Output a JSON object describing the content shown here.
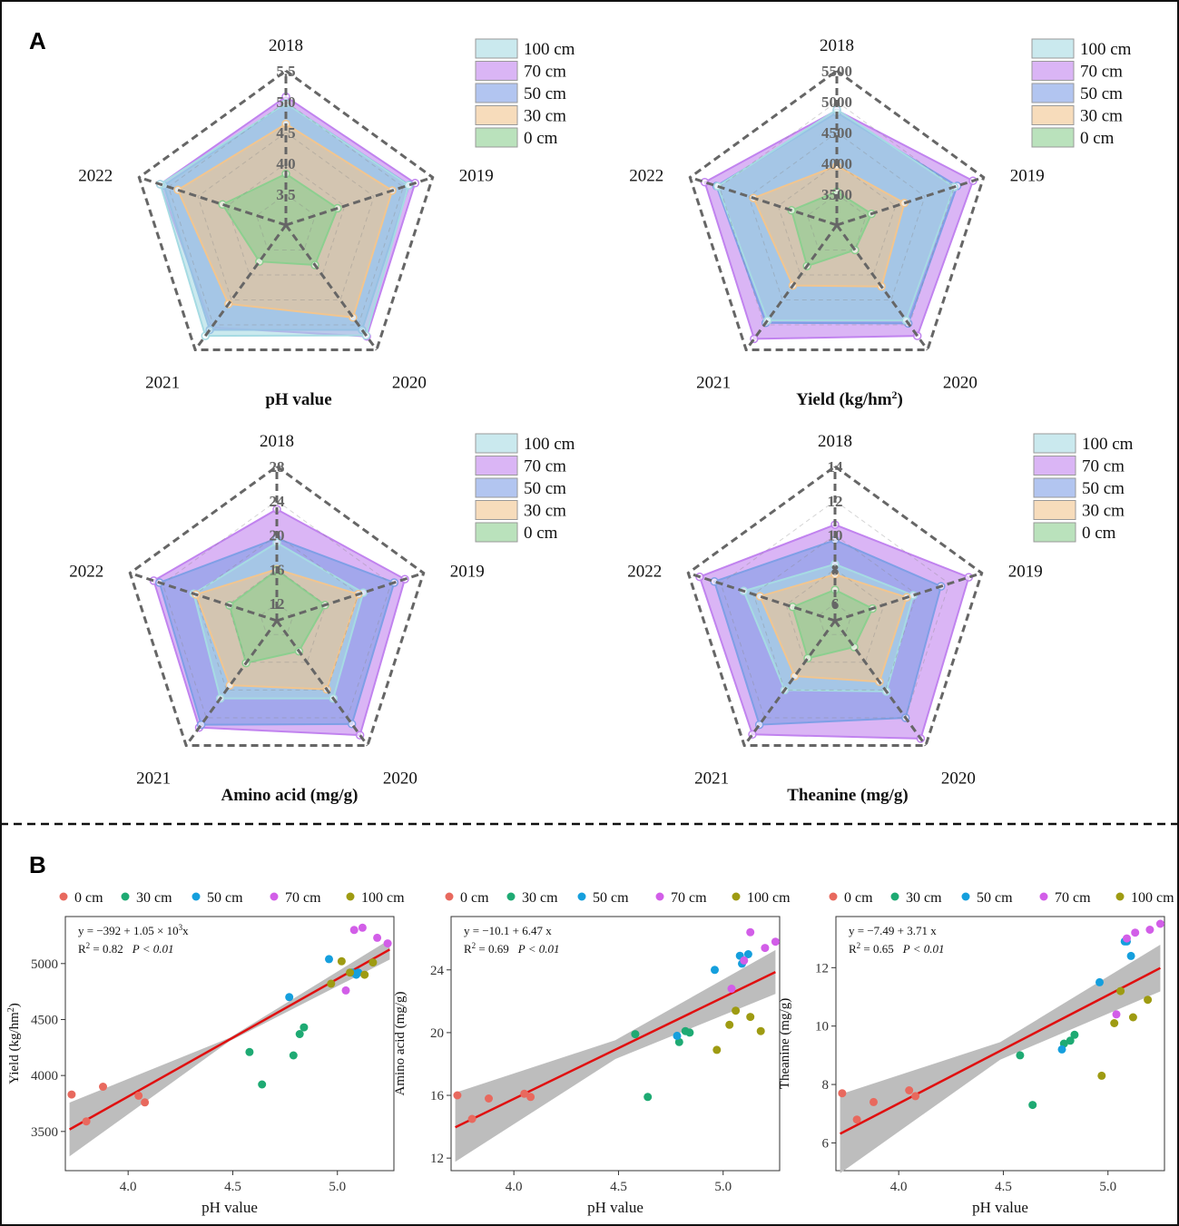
{
  "panels": {
    "a": "A",
    "b": "B"
  },
  "radar_charts": [
    {
      "type": "radar",
      "title": "pH value",
      "axes": [
        "2018",
        "2019",
        "2020",
        "2021",
        "2022"
      ],
      "range": [
        3.0,
        5.5
      ],
      "ticks": [
        3.5,
        4.0,
        4.5,
        5.0,
        5.5
      ],
      "tick_labels": [
        "3.5",
        "4.0",
        "4.5",
        "5.0",
        "5.5"
      ],
      "legend": [
        "100 cm",
        "70 cm",
        "50 cm",
        "30 cm",
        "0 cm"
      ],
      "series": [
        {
          "name": "0 cm",
          "values": [
            3.83,
            3.88,
            3.8,
            3.73,
            4.08
          ]
        },
        {
          "name": "30 cm",
          "values": [
            4.64,
            4.81,
            4.85,
            4.58,
            4.84
          ]
        },
        {
          "name": "50 cm",
          "values": [
            4.97,
            5.1,
            5.1,
            5.1,
            5.08
          ]
        },
        {
          "name": "70 cm",
          "values": [
            5.08,
            5.2,
            5.23,
            5.05,
            5.14
          ]
        },
        {
          "name": "100 cm",
          "values": [
            4.97,
            5.09,
            5.21,
            5.22,
            5.14
          ]
        }
      ]
    },
    {
      "type": "radar",
      "title": "Yield (kg/hm",
      "title_sup": "2",
      "title_end": ")",
      "axes": [
        "2018",
        "2019",
        "2020",
        "2021",
        "2022"
      ],
      "range": [
        3000,
        5500
      ],
      "ticks": [
        3500,
        4000,
        4500,
        5000,
        5500
      ],
      "tick_labels": [
        "3500",
        "4000",
        "4500",
        "5000",
        "5500"
      ],
      "legend": [
        "100 cm",
        "70 cm",
        "50 cm",
        "30 cm",
        "0 cm"
      ],
      "series": [
        {
          "name": "0 cm",
          "values": [
            3540,
            3590,
            3500,
            3820,
            3770
          ]
        },
        {
          "name": "30 cm",
          "values": [
            3960,
            4150,
            4230,
            4210,
            4420
          ]
        },
        {
          "name": "50 cm",
          "values": [
            4820,
            5050,
            4970,
            4960,
            5050
          ]
        },
        {
          "name": "70 cm",
          "values": [
            4860,
            5320,
            5220,
            5280,
            5250
          ]
        },
        {
          "name": "100 cm",
          "values": [
            4870,
            5000,
            4910,
            4910,
            5030
          ]
        }
      ]
    },
    {
      "type": "radar",
      "title": "Amino acid (mg/g)",
      "axes": [
        "2018",
        "2019",
        "2020",
        "2021",
        "2022"
      ],
      "range": [
        10,
        28
      ],
      "ticks": [
        12,
        16,
        20,
        24,
        28
      ],
      "tick_labels": [
        "12",
        "16",
        "20",
        "24",
        "28"
      ],
      "legend": [
        "100 cm",
        "70 cm",
        "50 cm",
        "30 cm",
        "0 cm"
      ],
      "series": [
        {
          "name": "0 cm",
          "values": [
            15.9,
            15.9,
            14.4,
            16.1,
            15.8
          ]
        },
        {
          "name": "30 cm",
          "values": [
            16.0,
            20.0,
            19.9,
            19.3,
            19.9
          ]
        },
        {
          "name": "50 cm",
          "values": [
            19.6,
            24.4,
            24.9,
            25.0,
            24.4
          ]
        },
        {
          "name": "70 cm",
          "values": [
            23.0,
            25.7,
            26.5,
            25.4,
            25.1
          ]
        },
        {
          "name": "100 cm",
          "values": [
            19.1,
            20.6,
            21.2,
            21.2,
            20.2
          ]
        }
      ]
    },
    {
      "type": "radar",
      "title": "Theanine (mg/g)",
      "axes": [
        "2018",
        "2019",
        "2020",
        "2021",
        "2022"
      ],
      "range": [
        5,
        14
      ],
      "ticks": [
        6,
        8,
        10,
        12,
        14
      ],
      "tick_labels": [
        "6",
        "8",
        "10",
        "12",
        "14"
      ],
      "legend": [
        "100 cm",
        "70 cm",
        "50 cm",
        "30 cm",
        "0 cm"
      ],
      "series": [
        {
          "name": "0 cm",
          "values": [
            6.8,
            7.3,
            6.9,
            7.7,
            7.6
          ]
        },
        {
          "name": "30 cm",
          "values": [
            7.7,
            9.4,
            9.4,
            9.0,
            9.6
          ]
        },
        {
          "name": "50 cm",
          "values": [
            9.7,
            11.5,
            12.0,
            12.5,
            12.4
          ]
        },
        {
          "name": "70 cm",
          "values": [
            10.6,
            13.2,
            13.5,
            13.2,
            13.3
          ]
        },
        {
          "name": "100 cm",
          "values": [
            8.3,
            9.8,
            10.1,
            10.0,
            10.6
          ]
        }
      ]
    }
  ],
  "chart_data": [
    {
      "type": "scatter",
      "xlabel": "pH value",
      "ylabel": "Yield (kg/hm",
      "ylabel_sup": "2",
      "ylabel_end": ")",
      "xlim": [
        3.7,
        5.27
      ],
      "ylim": [
        3150,
        5420
      ],
      "xticks": [
        4.0,
        4.5,
        5.0
      ],
      "xtick_labels": [
        "4.0",
        "4.5",
        "5.0"
      ],
      "yticks": [
        3500,
        4000,
        4500,
        5000
      ],
      "ytick_labels": [
        "3500",
        "4000",
        "4500",
        "5000"
      ],
      "fit": {
        "intercept": -392,
        "slope": 1051,
        "ci_half": [
          240,
          15,
          90
        ]
      },
      "eq_line1": "y = −392 + 1.05 × 10",
      "eq_line1_sup": "3",
      "eq_line1_end": "x",
      "eq_r2": "R",
      "eq_r2_sup": "2",
      "eq_r2_end": " = 0.82",
      "eq_p": "P < 0.01",
      "series": [
        {
          "name": "0 cm",
          "points": [
            [
              3.73,
              3830
            ],
            [
              3.8,
              3590
            ],
            [
              3.88,
              3900
            ],
            [
              4.05,
              3820
            ],
            [
              4.08,
              3760
            ]
          ]
        },
        {
          "name": "30 cm",
          "points": [
            [
              4.58,
              4210
            ],
            [
              4.64,
              3920
            ],
            [
              4.79,
              4180
            ],
            [
              4.82,
              4370
            ],
            [
              4.84,
              4430
            ]
          ]
        },
        {
          "name": "50 cm",
          "points": [
            [
              4.77,
              4700
            ],
            [
              4.96,
              5040
            ],
            [
              5.07,
              4920
            ],
            [
              5.09,
              4900
            ],
            [
              5.1,
              4920
            ]
          ]
        },
        {
          "name": "70 cm",
          "points": [
            [
              5.04,
              4760
            ],
            [
              5.08,
              5300
            ],
            [
              5.12,
              5320
            ],
            [
              5.19,
              5230
            ],
            [
              5.24,
              5180
            ]
          ]
        },
        {
          "name": "100 cm",
          "points": [
            [
              4.97,
              4820
            ],
            [
              5.02,
              5020
            ],
            [
              5.06,
              4920
            ],
            [
              5.13,
              4900
            ],
            [
              5.17,
              5010
            ]
          ]
        }
      ]
    },
    {
      "type": "scatter",
      "xlabel": "pH value",
      "ylabel": "Amino acid  (mg/g)",
      "xlim": [
        3.7,
        5.27
      ],
      "ylim": [
        11.2,
        27.4
      ],
      "xticks": [
        4.0,
        4.5,
        5.0
      ],
      "xtick_labels": [
        "4.0",
        "4.5",
        "5.0"
      ],
      "yticks": [
        12,
        16,
        20,
        24
      ],
      "ytick_labels": [
        "12",
        "16",
        "20",
        "24"
      ],
      "fit": {
        "intercept": -10.1,
        "slope": 6.47,
        "ci_half": [
          2.2,
          0.6,
          1.4
        ]
      },
      "eq_line1": "y = −10.1 + 6.47 x",
      "eq_r2": "R",
      "eq_r2_sup": "2",
      "eq_r2_end": " = 0.69",
      "eq_p": "P < 0.01",
      "series": [
        {
          "name": "0 cm",
          "points": [
            [
              3.73,
              16.0
            ],
            [
              3.8,
              14.5
            ],
            [
              3.88,
              15.8
            ],
            [
              4.05,
              16.1
            ],
            [
              4.08,
              15.9
            ]
          ]
        },
        {
          "name": "30 cm",
          "points": [
            [
              4.58,
              19.9
            ],
            [
              4.64,
              15.9
            ],
            [
              4.79,
              19.4
            ],
            [
              4.82,
              20.1
            ],
            [
              4.84,
              20.0
            ]
          ]
        },
        {
          "name": "50 cm",
          "points": [
            [
              4.78,
              19.8
            ],
            [
              4.96,
              24.0
            ],
            [
              5.08,
              24.9
            ],
            [
              5.09,
              24.4
            ],
            [
              5.12,
              25.0
            ]
          ]
        },
        {
          "name": "70 cm",
          "points": [
            [
              5.04,
              22.8
            ],
            [
              5.1,
              24.6
            ],
            [
              5.13,
              26.4
            ],
            [
              5.2,
              25.4
            ],
            [
              5.25,
              25.8
            ]
          ]
        },
        {
          "name": "100 cm",
          "points": [
            [
              4.97,
              18.9
            ],
            [
              5.03,
              20.5
            ],
            [
              5.06,
              21.4
            ],
            [
              5.13,
              21.0
            ],
            [
              5.18,
              20.1
            ]
          ]
        }
      ]
    },
    {
      "type": "scatter",
      "xlabel": "pH value",
      "ylabel": "Theanine (mg/g)",
      "xlim": [
        3.7,
        5.27
      ],
      "ylim": [
        5.05,
        13.75
      ],
      "xticks": [
        4.0,
        4.5,
        5.0
      ],
      "xtick_labels": [
        "4.0",
        "4.5",
        "5.0"
      ],
      "yticks": [
        6,
        8,
        10,
        12
      ],
      "ytick_labels": [
        "6",
        "8",
        "10",
        "12"
      ],
      "fit": {
        "intercept": -7.49,
        "slope": 3.71,
        "ci_half": [
          1.35,
          0.3,
          0.8
        ]
      },
      "eq_line1": "y = −7.49 + 3.71 x",
      "eq_r2": "R",
      "eq_r2_sup": "2",
      "eq_r2_end": " = 0.65",
      "eq_p": "P < 0.01",
      "series": [
        {
          "name": "0 cm",
          "points": [
            [
              3.73,
              7.7
            ],
            [
              3.8,
              6.8
            ],
            [
              3.88,
              7.4
            ],
            [
              4.05,
              7.8
            ],
            [
              4.08,
              7.6
            ]
          ]
        },
        {
          "name": "30 cm",
          "points": [
            [
              4.58,
              9.0
            ],
            [
              4.64,
              7.3
            ],
            [
              4.79,
              9.4
            ],
            [
              4.82,
              9.5
            ],
            [
              4.84,
              9.7
            ]
          ]
        },
        {
          "name": "50 cm",
          "points": [
            [
              4.78,
              9.2
            ],
            [
              4.96,
              11.5
            ],
            [
              5.08,
              12.9
            ],
            [
              5.09,
              12.9
            ],
            [
              5.11,
              12.4
            ]
          ]
        },
        {
          "name": "70 cm",
          "points": [
            [
              5.04,
              10.4
            ],
            [
              5.09,
              13.0
            ],
            [
              5.13,
              13.2
            ],
            [
              5.2,
              13.3
            ],
            [
              5.25,
              13.5
            ]
          ]
        },
        {
          "name": "100 cm",
          "points": [
            [
              4.97,
              8.3
            ],
            [
              5.03,
              10.1
            ],
            [
              5.06,
              11.2
            ],
            [
              5.12,
              10.3
            ],
            [
              5.19,
              10.9
            ]
          ]
        }
      ]
    }
  ],
  "radar_colors": {
    "0 cm": "#8ccf8f",
    "30 cm": "#f2c58e",
    "50 cm": "#7f9fe6",
    "70 cm": "#c183ef",
    "100 cm": "#a6dbe3"
  },
  "scatter_colors": {
    "0 cm": "#e8695e",
    "30 cm": "#1eaa73",
    "50 cm": "#159fdd",
    "70 cm": "#d25ee8",
    "100 cm": "#9e9b12"
  },
  "fit_color": "#e01010",
  "ci_color": "#bdbdbd",
  "grid_color": "#666666"
}
